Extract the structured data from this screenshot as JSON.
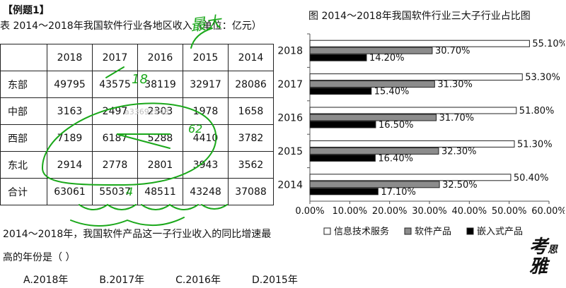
{
  "header": {
    "label": "【例题1】"
  },
  "table": {
    "caption": "表  2014～2018年我国软件行业各地区收入（单位：亿元）",
    "columns": [
      "",
      "2018",
      "2017",
      "2016",
      "2015",
      "2014"
    ],
    "rows": [
      [
        "东部",
        "49795",
        "43575",
        "38119",
        "32917",
        "28086"
      ],
      [
        "中部",
        "3163",
        "2497",
        "2303",
        "1978",
        "1658"
      ],
      [
        "西部",
        "7189",
        "6187",
        "5288",
        "4410",
        "3782"
      ],
      [
        "东北",
        "2914",
        "2778",
        "2801",
        "3943",
        "3562"
      ],
      [
        "合计",
        "63061",
        "55037",
        "48511",
        "43248",
        "37088"
      ]
    ]
  },
  "watermark": "a33692948",
  "question": {
    "line1": "2014～2018年，我国软件产品这一子行业收入的同比增速最",
    "line2": "高的年份是（ ）",
    "options": [
      "A.2018年",
      "B.2017年",
      "C.2016年",
      "D.2015年"
    ]
  },
  "handwriting": [
    "最大",
    "18",
    "62",
    "4"
  ],
  "brand": {
    "line1": "考",
    "line2": "雅",
    "small": "思"
  },
  "colors": {
    "handwriting": "#1aa81a"
  },
  "chart_data": {
    "type": "bar",
    "orientation": "horizontal",
    "title": "图  2014～2018年我国软件行业三大子行业占比图",
    "categories": [
      "2018",
      "2017",
      "2016",
      "2015",
      "2014"
    ],
    "series": [
      {
        "name": "信息技术服务",
        "values": [
          55.1,
          53.3,
          51.8,
          51.3,
          50.4
        ],
        "labels": [
          "55.10%",
          "53.30%",
          "51.80%",
          "51.30%",
          "50.40%"
        ],
        "color": "#ffffff"
      },
      {
        "name": "软件产品",
        "values": [
          30.7,
          31.3,
          31.7,
          32.3,
          32.5
        ],
        "labels": [
          "30.70%",
          "31.30%",
          "31.70%",
          "32.30%",
          "32.50%"
        ],
        "color": "#8c8c8c"
      },
      {
        "name": "嵌入式产品",
        "values": [
          14.2,
          15.4,
          16.5,
          16.4,
          17.1
        ],
        "labels": [
          "14.20%",
          "15.40%",
          "16.50%",
          "16.40%",
          "17.10%"
        ],
        "color": "#000000"
      }
    ],
    "xlim": [
      0,
      60
    ],
    "xticks": [
      "0.00%",
      "10.00%",
      "20.00%",
      "30.00%",
      "40.00%",
      "50.00%",
      "60.00%"
    ],
    "legend_position": "bottom",
    "grid": false
  }
}
